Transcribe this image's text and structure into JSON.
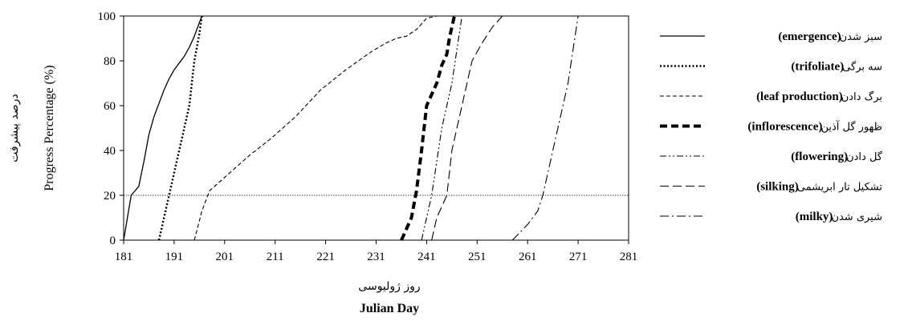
{
  "chart_data": {
    "type": "line",
    "xlabel": "Julian Day",
    "xlabel_fa": "روز ژولیوسی",
    "ylabel": "Progress Percentage (%)",
    "ylabel_fa": "درصد پیشرفت",
    "xlim": [
      181,
      281
    ],
    "ylim": [
      0,
      100
    ],
    "xticks": [
      "181",
      "191",
      "201",
      "211",
      "221",
      "231",
      "241",
      "251",
      "261",
      "271",
      "281"
    ],
    "yticks": [
      "0",
      "20",
      "40",
      "60",
      "80",
      "100"
    ],
    "grid": false,
    "legend_position": "right",
    "reference_line": {
      "y": 20
    },
    "series": [
      {
        "name": "(emergence)",
        "name_fa": "سبز شدن",
        "style": "solid",
        "width": 1.3,
        "x": [
          181,
          182.5,
          184,
          185,
          186,
          187,
          188,
          189,
          190,
          191,
          192,
          193,
          194,
          195,
          196,
          196.5
        ],
        "y": [
          0,
          20,
          24,
          35,
          47,
          55,
          61,
          67,
          72,
          76,
          79,
          82,
          86,
          91,
          97,
          100
        ]
      },
      {
        "name": "(trifoliate)",
        "name_fa": "سه برگی",
        "style": "dotted",
        "width": 2.5,
        "x": [
          188,
          190,
          192,
          194,
          195,
          196,
          196.5
        ],
        "y": [
          0,
          20,
          40,
          60,
          80,
          92,
          100
        ]
      },
      {
        "name": "(leaf production)",
        "name_fa": "برگ دادن",
        "style": "dashed",
        "width": 1.1,
        "x": [
          195,
          196.5,
          198,
          200,
          203,
          206,
          210,
          215,
          220,
          225,
          230,
          233,
          235,
          237,
          239,
          241,
          243,
          245
        ],
        "y": [
          0,
          13,
          22,
          26,
          32,
          38,
          45,
          55,
          67,
          76,
          84,
          88,
          90,
          91,
          94,
          99,
          100,
          100
        ]
      },
      {
        "name": "(inflorescence)",
        "name_fa": "ظهور گل آذین",
        "style": "bold-dash",
        "width": 4,
        "x": [
          236,
          238,
          239,
          240,
          241,
          242,
          243,
          244,
          245,
          245.5,
          246.5
        ],
        "y": [
          0,
          10,
          22,
          40,
          60,
          65,
          70,
          78,
          83,
          90,
          100
        ]
      },
      {
        "name": "(flowering)",
        "name_fa": "گل دادن",
        "style": "dashdotdot",
        "width": 1.1,
        "x": [
          240,
          241,
          242,
          243,
          244,
          245,
          246,
          247,
          248
        ],
        "y": [
          0,
          10,
          20,
          35,
          50,
          60,
          70,
          85,
          100
        ]
      },
      {
        "name": "(silking)",
        "name_fa": "تشکیل تار ابریشمی",
        "style": "longdash",
        "width": 1.1,
        "x": [
          242,
          243,
          245,
          246,
          247,
          248,
          250,
          252,
          254,
          256
        ],
        "y": [
          0,
          10,
          20,
          40,
          50,
          60,
          80,
          88,
          95,
          100
        ]
      },
      {
        "name": "(milky)",
        "name_fa": "شیری شدن",
        "style": "dashdot",
        "width": 1.1,
        "x": [
          258,
          261,
          263,
          264,
          265,
          266,
          267,
          268,
          269,
          270,
          271
        ],
        "y": [
          0,
          7,
          13,
          20,
          30,
          40,
          50,
          60,
          70,
          85,
          100
        ]
      }
    ]
  }
}
